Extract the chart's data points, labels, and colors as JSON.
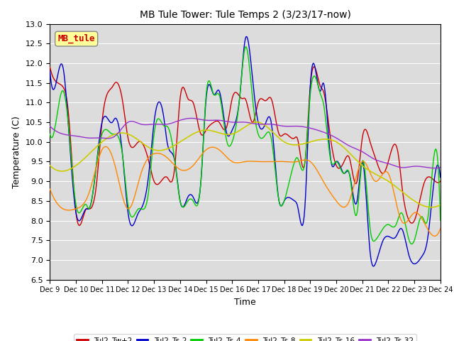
{
  "title": "MB Tule Tower: Tule Temps 2 (3/23/17-now)",
  "xlabel": "Time",
  "ylabel": "Temperature (C)",
  "ylim": [
    6.5,
    13.0
  ],
  "yticks": [
    6.5,
    7.0,
    7.5,
    8.0,
    8.5,
    9.0,
    9.5,
    10.0,
    10.5,
    11.0,
    11.5,
    12.0,
    12.5,
    13.0
  ],
  "xtick_positions": [
    0,
    1,
    2,
    3,
    4,
    5,
    6,
    7,
    8,
    9,
    10,
    11,
    12,
    13,
    14,
    15
  ],
  "xtick_labels": [
    "Dec 9",
    "Dec 10",
    "Dec 11",
    "Dec 12",
    "Dec 13",
    "Dec 14",
    "Dec 15",
    "Dec 16",
    "Dec 17",
    "Dec 18",
    "Dec 19",
    "Dec 20",
    "Dec 21",
    "Dec 22",
    "Dec 23",
    "Dec 24"
  ],
  "annotation_text": "MB_tule",
  "annotation_color": "#cc0000",
  "annotation_bg": "#ffff99",
  "background_color": "#dcdcdc",
  "grid_color": "#ffffff",
  "legend_labels": [
    "Tul2_Tw+2",
    "Tul2_Ts-2",
    "Tul2_Ts-4",
    "Tul2_Ts-8",
    "Tul2_Ts-16",
    "Tul2_Ts-32"
  ],
  "line_colors": [
    "#cc0000",
    "#0000cc",
    "#00cc00",
    "#ff8800",
    "#cccc00",
    "#9933cc"
  ],
  "days": 15,
  "red_pts_x": [
    0.0,
    0.3,
    0.5,
    0.7,
    1.0,
    1.4,
    1.5,
    1.8,
    2.0,
    2.4,
    2.5,
    2.8,
    3.0,
    3.4,
    3.5,
    3.8,
    4.0,
    4.4,
    4.5,
    4.8,
    5.0,
    5.3,
    5.5,
    5.8,
    6.0,
    6.3,
    6.5,
    6.8,
    7.0,
    7.4,
    7.5,
    7.8,
    8.0,
    8.3,
    8.5,
    8.8,
    9.0,
    9.4,
    9.5,
    9.8,
    10.0,
    10.4,
    10.5,
    10.8,
    11.0,
    11.3,
    11.5,
    11.8,
    12.0,
    12.3,
    12.5,
    12.8,
    13.0,
    13.4,
    13.5,
    13.8,
    14.0,
    14.4,
    14.5,
    14.8,
    15.0
  ],
  "red_pts_y": [
    11.9,
    11.5,
    11.4,
    10.8,
    8.2,
    8.3,
    8.3,
    9.0,
    10.5,
    11.4,
    11.5,
    11.0,
    10.1,
    10.0,
    10.0,
    9.5,
    9.0,
    9.1,
    9.1,
    9.4,
    11.1,
    11.1,
    11.0,
    10.2,
    10.3,
    10.5,
    10.5,
    10.4,
    11.1,
    11.1,
    11.1,
    10.5,
    11.0,
    11.05,
    11.1,
    10.2,
    10.2,
    10.1,
    10.1,
    9.5,
    11.4,
    11.4,
    11.3,
    10.0,
    9.4,
    9.5,
    9.6,
    9.0,
    10.1,
    10.0,
    9.6,
    9.2,
    9.5,
    9.6,
    9.0,
    8.0,
    8.0,
    9.0,
    9.1,
    9.0,
    9.0
  ],
  "blue_pts_x": [
    0.0,
    0.3,
    0.5,
    0.7,
    1.0,
    1.4,
    1.5,
    1.8,
    2.0,
    2.4,
    2.5,
    2.8,
    3.0,
    3.4,
    3.5,
    3.8,
    4.0,
    4.4,
    4.5,
    4.8,
    5.0,
    5.3,
    5.5,
    5.8,
    6.0,
    6.3,
    6.5,
    6.8,
    7.0,
    7.3,
    7.5,
    7.8,
    8.0,
    8.3,
    8.5,
    8.8,
    9.0,
    9.4,
    9.5,
    9.8,
    10.0,
    10.4,
    10.5,
    10.8,
    11.0,
    11.3,
    11.5,
    11.8,
    12.0,
    12.3,
    12.5,
    12.8,
    13.0,
    13.3,
    13.5,
    13.8,
    14.0,
    14.3,
    14.5,
    14.8,
    15.0
  ],
  "blue_pts_y": [
    11.8,
    11.7,
    11.9,
    10.5,
    8.2,
    8.3,
    8.3,
    9.5,
    10.5,
    10.5,
    10.6,
    9.6,
    8.2,
    8.2,
    8.3,
    9.2,
    10.5,
    10.5,
    10.0,
    9.5,
    8.5,
    8.6,
    8.6,
    9.0,
    11.1,
    11.2,
    11.3,
    10.2,
    10.3,
    11.2,
    12.6,
    11.5,
    10.5,
    10.5,
    10.5,
    8.5,
    8.5,
    8.5,
    8.4,
    8.4,
    11.4,
    11.3,
    11.5,
    9.5,
    9.5,
    9.2,
    9.2,
    8.5,
    9.5,
    7.2,
    6.9,
    7.5,
    7.6,
    7.6,
    7.8,
    7.1,
    6.9,
    7.1,
    7.5,
    9.2,
    9.1
  ],
  "green_pts_x": [
    0.0,
    0.3,
    0.5,
    0.7,
    1.0,
    1.4,
    1.5,
    1.8,
    2.0,
    2.4,
    2.5,
    2.8,
    3.0,
    3.4,
    3.5,
    3.8,
    4.0,
    4.4,
    4.5,
    4.8,
    5.0,
    5.3,
    5.5,
    5.8,
    6.0,
    6.3,
    6.5,
    6.8,
    7.0,
    7.3,
    7.5,
    7.8,
    8.0,
    8.3,
    8.5,
    8.8,
    9.0,
    9.4,
    9.5,
    9.8,
    10.0,
    10.4,
    10.5,
    10.8,
    11.0,
    11.3,
    11.5,
    11.8,
    12.0,
    12.3,
    12.5,
    12.8,
    13.0,
    13.3,
    13.5,
    13.8,
    14.0,
    14.3,
    14.5,
    14.8,
    15.0
  ],
  "green_pts_y": [
    10.2,
    10.8,
    11.3,
    10.5,
    8.4,
    8.4,
    8.3,
    9.5,
    10.2,
    10.2,
    10.2,
    9.6,
    8.4,
    8.3,
    8.3,
    8.8,
    10.2,
    10.4,
    10.4,
    9.5,
    8.5,
    8.5,
    8.5,
    9.0,
    11.2,
    11.2,
    11.2,
    10.0,
    10.0,
    11.2,
    12.4,
    11.0,
    10.2,
    10.2,
    10.1,
    8.5,
    8.5,
    9.5,
    9.6,
    9.5,
    11.2,
    11.2,
    11.0,
    9.5,
    9.5,
    9.2,
    9.2,
    8.2,
    9.5,
    7.8,
    7.5,
    7.8,
    7.9,
    7.9,
    8.2,
    7.5,
    7.5,
    8.1,
    8.0,
    9.8,
    8.0
  ],
  "orange_pts_x": [
    0.0,
    0.5,
    1.0,
    1.5,
    2.0,
    2.5,
    3.0,
    3.5,
    4.0,
    4.5,
    5.0,
    5.5,
    6.0,
    6.5,
    7.0,
    7.5,
    8.0,
    8.5,
    9.0,
    9.5,
    10.0,
    10.5,
    11.0,
    11.5,
    12.0,
    12.5,
    13.0,
    13.5,
    14.0,
    14.5,
    15.0
  ],
  "orange_pts_y": [
    8.8,
    8.3,
    8.3,
    8.7,
    9.8,
    9.4,
    8.3,
    9.2,
    9.7,
    9.6,
    9.3,
    9.4,
    9.8,
    9.8,
    9.5,
    9.5,
    9.5,
    9.5,
    9.5,
    9.5,
    9.5,
    9.0,
    8.5,
    8.5,
    9.5,
    9.0,
    9.2,
    8.0,
    8.2,
    7.8,
    7.8
  ],
  "yellow_pts_x": [
    0.0,
    1.0,
    2.0,
    3.0,
    4.0,
    5.0,
    6.0,
    7.0,
    8.0,
    9.0,
    10.0,
    11.0,
    12.0,
    13.0,
    14.0,
    15.0
  ],
  "yellow_pts_y": [
    9.4,
    9.4,
    10.0,
    10.2,
    9.8,
    10.0,
    10.3,
    10.2,
    10.5,
    10.0,
    10.0,
    10.0,
    9.4,
    9.0,
    8.5,
    8.4
  ],
  "purple_pts_x": [
    0.0,
    0.5,
    1.0,
    1.5,
    2.0,
    2.5,
    3.0,
    3.5,
    4.0,
    4.5,
    5.0,
    5.5,
    6.0,
    6.5,
    7.0,
    7.5,
    8.0,
    8.5,
    9.0,
    9.5,
    10.0,
    10.5,
    11.0,
    11.5,
    12.0,
    12.5,
    13.0,
    13.5,
    14.0,
    14.5,
    15.0
  ],
  "purple_pts_y": [
    10.4,
    10.2,
    10.15,
    10.1,
    10.1,
    10.15,
    10.5,
    10.45,
    10.45,
    10.45,
    10.55,
    10.6,
    10.55,
    10.55,
    10.5,
    10.5,
    10.45,
    10.45,
    10.4,
    10.4,
    10.35,
    10.25,
    10.1,
    9.9,
    9.75,
    9.55,
    9.45,
    9.35,
    9.38,
    9.35,
    9.35
  ]
}
